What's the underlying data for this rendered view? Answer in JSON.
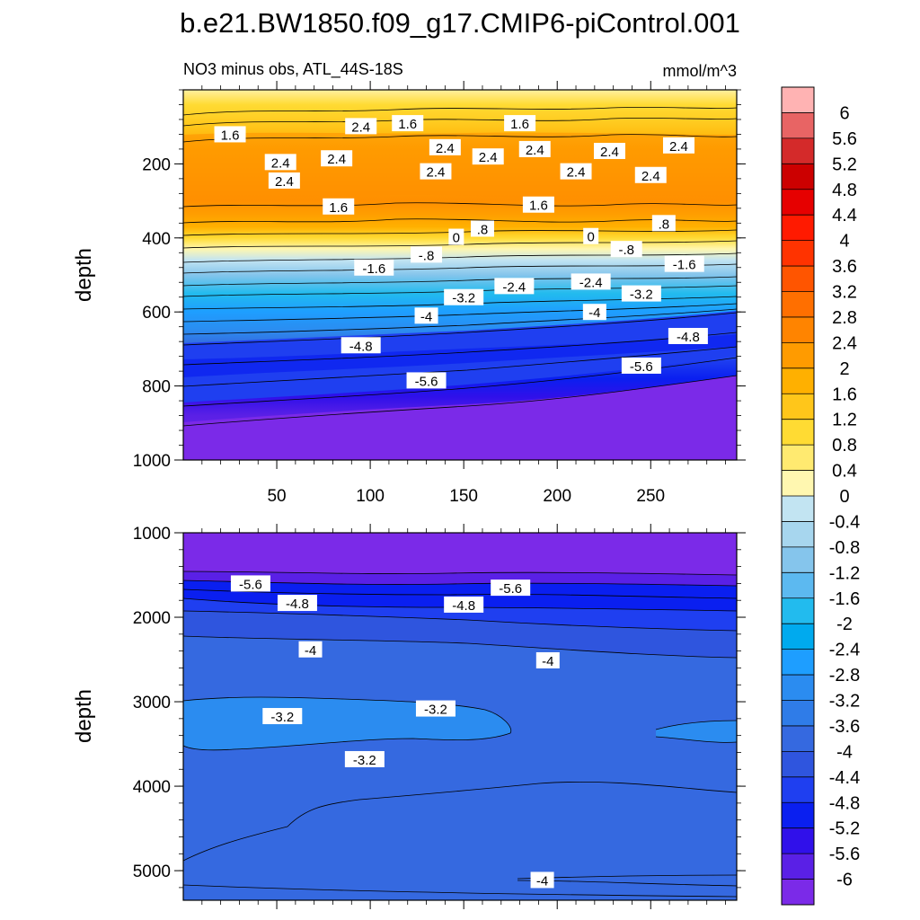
{
  "figure": {
    "title": "b.e21.BW1850.f09_g17.CMIP6-piControl.001",
    "subtitle_left": "NO3 minus obs, ATL_44S-18S",
    "subtitle_right": "mmol/m^3"
  },
  "chart_data": [
    {
      "type": "contour",
      "panel": "upper",
      "ylabel": "depth",
      "xlim": [
        0,
        296
      ],
      "ylim": [
        1000,
        0
      ],
      "y_reversed": true,
      "x_ticks": [
        50,
        100,
        150,
        200,
        250
      ],
      "y_ticks": [
        200,
        400,
        600,
        800,
        1000
      ],
      "contour_labels": [
        {
          "text": "1.6",
          "x": 25,
          "y": 120
        },
        {
          "text": "2.4",
          "x": 95,
          "y": 98
        },
        {
          "text": "1.6",
          "x": 120,
          "y": 90
        },
        {
          "text": "1.6",
          "x": 180,
          "y": 90
        },
        {
          "text": "2.4",
          "x": 140,
          "y": 155
        },
        {
          "text": "2.4",
          "x": 52,
          "y": 195
        },
        {
          "text": "2.4",
          "x": 82,
          "y": 185
        },
        {
          "text": "2.4",
          "x": 163,
          "y": 180
        },
        {
          "text": "2.4",
          "x": 188,
          "y": 160
        },
        {
          "text": "2.4",
          "x": 228,
          "y": 165
        },
        {
          "text": "2.4",
          "x": 265,
          "y": 150
        },
        {
          "text": "2.4",
          "x": 54,
          "y": 245
        },
        {
          "text": "2.4",
          "x": 135,
          "y": 220
        },
        {
          "text": "2.4",
          "x": 210,
          "y": 220
        },
        {
          "text": "2.4",
          "x": 250,
          "y": 230
        },
        {
          "text": "1.6",
          "x": 83,
          "y": 315
        },
        {
          "text": "1.6",
          "x": 190,
          "y": 310
        },
        {
          "text": ".8",
          "x": 160,
          "y": 375
        },
        {
          "text": "0",
          "x": 146,
          "y": 397
        },
        {
          "text": "0",
          "x": 218,
          "y": 395
        },
        {
          "text": ".8",
          "x": 257,
          "y": 360
        },
        {
          "text": "-.8",
          "x": 130,
          "y": 445
        },
        {
          "text": "-.8",
          "x": 237,
          "y": 430
        },
        {
          "text": "-1.6",
          "x": 102,
          "y": 480
        },
        {
          "text": "-1.6",
          "x": 268,
          "y": 470
        },
        {
          "text": "-3.2",
          "x": 150,
          "y": 560
        },
        {
          "text": "-2.4",
          "x": 177,
          "y": 530
        },
        {
          "text": "-2.4",
          "x": 218,
          "y": 518
        },
        {
          "text": "-3.2",
          "x": 245,
          "y": 550
        },
        {
          "text": "-4",
          "x": 130,
          "y": 610
        },
        {
          "text": "-4",
          "x": 220,
          "y": 600
        },
        {
          "text": "-4.8",
          "x": 95,
          "y": 690
        },
        {
          "text": "-4.8",
          "x": 270,
          "y": 665
        },
        {
          "text": "-5.6",
          "x": 130,
          "y": 785
        },
        {
          "text": "-5.6",
          "x": 245,
          "y": 745
        }
      ]
    },
    {
      "type": "contour",
      "panel": "lower",
      "ylabel": "depth",
      "xlim": [
        0,
        296
      ],
      "ylim": [
        5350,
        1000
      ],
      "y_reversed": true,
      "y_ticks": [
        1000,
        2000,
        3000,
        4000,
        5000
      ],
      "contour_labels": [
        {
          "text": "-5.6",
          "x": 36,
          "y": 1600
        },
        {
          "text": "-5.6",
          "x": 175,
          "y": 1650
        },
        {
          "text": "-4.8",
          "x": 61,
          "y": 1830
        },
        {
          "text": "-4.8",
          "x": 150,
          "y": 1850
        },
        {
          "text": "-4",
          "x": 68,
          "y": 2380
        },
        {
          "text": "-4",
          "x": 195,
          "y": 2510
        },
        {
          "text": "-3.2",
          "x": 53,
          "y": 3170
        },
        {
          "text": "-3.2",
          "x": 135,
          "y": 3080
        },
        {
          "text": "-3.2",
          "x": 97,
          "y": 3680
        },
        {
          "text": "-4",
          "x": 192,
          "y": 5110
        }
      ]
    }
  ],
  "colorbar": {
    "labels": [
      "6",
      "5.6",
      "5.2",
      "4.8",
      "4.4",
      "4",
      "3.6",
      "3.2",
      "2.8",
      "2.4",
      "2",
      "1.6",
      "1.2",
      "0.8",
      "0.4",
      "0",
      "-0.4",
      "-0.8",
      "-1.2",
      "-1.6",
      "-2",
      "-2.4",
      "-2.8",
      "-3.2",
      "-3.6",
      "-4",
      "-4.4",
      "-4.8",
      "-5.2",
      "-5.6",
      "-6"
    ],
    "colors": [
      "#ffb3b3",
      "#e86464",
      "#d42a2a",
      "#cc0000",
      "#e60000",
      "#ff1a00",
      "#ff3300",
      "#ff5500",
      "#ff6f00",
      "#ff8400",
      "#ff9b00",
      "#ffb000",
      "#ffc61a",
      "#ffdb33",
      "#ffea70",
      "#fff7b0",
      "#c2e4f2",
      "#a7d6ee",
      "#85c5ec",
      "#5cb9f0",
      "#22bbee",
      "#00aaee",
      "#1e9eff",
      "#2b8cf0",
      "#2f7ce8",
      "#3569e0",
      "#2f55de",
      "#1f3ff0",
      "#0a1ff0",
      "#3010ea",
      "#5a20e6",
      "#7b2ae8"
    ]
  }
}
